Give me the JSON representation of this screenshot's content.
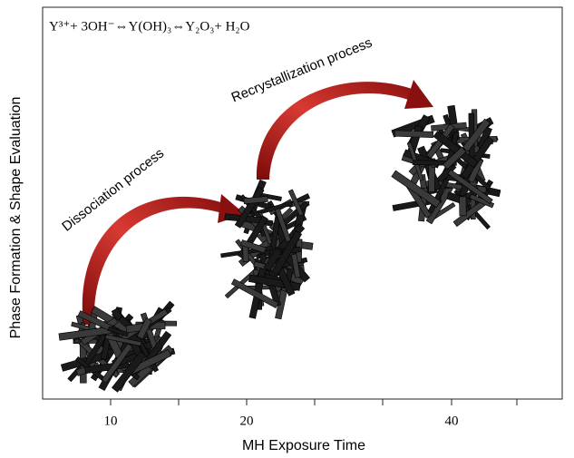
{
  "equation": "Y³⁺+ 3OH⁻⇔Y(OH)₃⇔Y₂O₃+ H₂O",
  "processes": [
    "Dissociation process",
    "Recrystallization process"
  ],
  "y_axis": {
    "label": "Phase Formation & Shape Evaluation"
  },
  "x_axis": {
    "label": "MH Exposure Time",
    "tick_labels": [
      "10",
      "20",
      "40"
    ]
  }
}
